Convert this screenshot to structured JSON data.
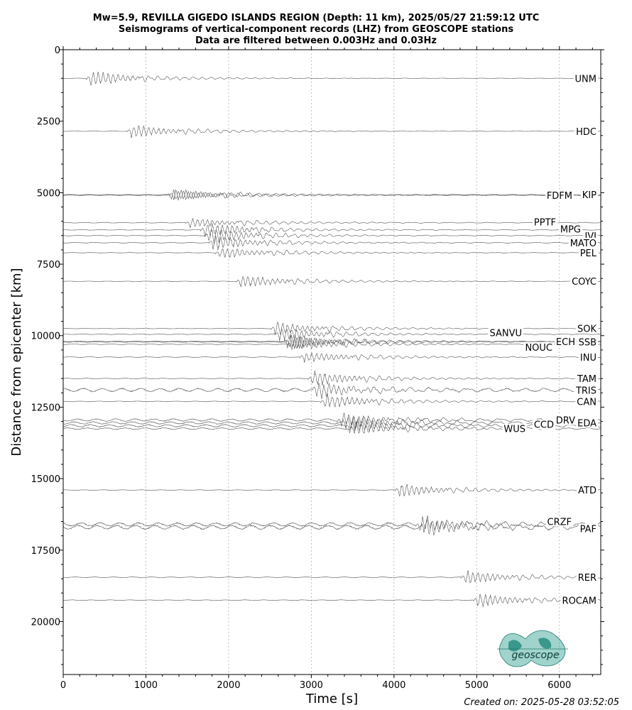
{
  "figure": {
    "title_lines": [
      "Mw=5.9, REVILLA GIGEDO ISLANDS REGION (Depth: 11 km), 2025/05/27 21:59:12 UTC",
      "Seismograms of vertical-component records (LHZ) from GEOSCOPE stations",
      "Data are filtered between 0.003Hz and 0.03Hz"
    ],
    "created": "Created on: 2025-05-28 03:52:05",
    "logo_text": "geoscope"
  },
  "chart_data": {
    "type": "line",
    "xlabel": "Time [s]",
    "ylabel": "Distance from epicenter [km]",
    "xlim": [
      0,
      6500
    ],
    "ylim": [
      21850,
      0
    ],
    "y_inverted": true,
    "xticks": [
      0,
      1000,
      2000,
      3000,
      4000,
      5000,
      6000
    ],
    "yticks": [
      0,
      2500,
      5000,
      7500,
      10000,
      12500,
      15000,
      17500,
      20000
    ],
    "grid": "x-dotted",
    "colors": {
      "trace": "#555555",
      "grid": "#b0b0b0",
      "logo": "#2a9d8f"
    },
    "stations": [
      {
        "name": "UNM",
        "distance": 1000,
        "arrival": 320,
        "amp": 0.9,
        "noise": 0.03
      },
      {
        "name": "HDC",
        "distance": 2850,
        "arrival": 810,
        "amp": 0.8,
        "noise": 0.03
      },
      {
        "name": "FDFM",
        "distance": 5090,
        "arrival": 1290,
        "amp": 0.7,
        "noise": 0.04
      },
      {
        "name": "KIP",
        "distance": 5070,
        "arrival": 1320,
        "amp": 0.7,
        "noise": 0.04
      },
      {
        "name": "PPTF",
        "distance": 6050,
        "arrival": 1520,
        "amp": 0.6,
        "noise": 0.05
      },
      {
        "name": "MPG",
        "distance": 6300,
        "arrival": 1700,
        "amp": 0.9,
        "noise": 0.05
      },
      {
        "name": "IVI",
        "distance": 6500,
        "arrival": 1750,
        "amp": 1.0,
        "noise": 0.05
      },
      {
        "name": "MATO",
        "distance": 6750,
        "arrival": 1800,
        "amp": 0.9,
        "noise": 0.05
      },
      {
        "name": "PEL",
        "distance": 7100,
        "arrival": 1880,
        "amp": 0.7,
        "noise": 0.03
      },
      {
        "name": "COYC",
        "distance": 8100,
        "arrival": 2130,
        "amp": 0.8,
        "noise": 0.03
      },
      {
        "name": "SOK",
        "distance": 9750,
        "arrival": 2550,
        "amp": 0.8,
        "noise": 0.04
      },
      {
        "name": "SANVU",
        "distance": 9950,
        "arrival": 2600,
        "amp": 0.8,
        "noise": 0.05
      },
      {
        "name": "ECH",
        "distance": 10200,
        "arrival": 2700,
        "amp": 0.9,
        "noise": 0.05
      },
      {
        "name": "SSB",
        "distance": 10220,
        "arrival": 2720,
        "amp": 0.9,
        "noise": 0.05
      },
      {
        "name": "NOUC",
        "distance": 10300,
        "arrival": 2750,
        "amp": 0.8,
        "noise": 0.05
      },
      {
        "name": "INU",
        "distance": 10750,
        "arrival": 2900,
        "amp": 0.7,
        "noise": 0.05
      },
      {
        "name": "TAM",
        "distance": 11500,
        "arrival": 3000,
        "amp": 0.9,
        "noise": 0.05
      },
      {
        "name": "TRIS",
        "distance": 11900,
        "arrival": 3050,
        "amp": 0.9,
        "noise": 0.25
      },
      {
        "name": "CAN",
        "distance": 12300,
        "arrival": 3150,
        "amp": 0.9,
        "noise": 0.05
      },
      {
        "name": "DRV",
        "distance": 12950,
        "arrival": 3350,
        "amp": 0.8,
        "noise": 0.18
      },
      {
        "name": "EDA",
        "distance": 13050,
        "arrival": 3400,
        "amp": 0.9,
        "noise": 0.18
      },
      {
        "name": "CCD",
        "distance": 13150,
        "arrival": 3450,
        "amp": 0.8,
        "noise": 0.18
      },
      {
        "name": "WUS",
        "distance": 13250,
        "arrival": 3500,
        "amp": 0.8,
        "noise": 0.12
      },
      {
        "name": "ATD",
        "distance": 15400,
        "arrival": 4050,
        "amp": 0.8,
        "noise": 0.05
      },
      {
        "name": "CRZF",
        "distance": 16600,
        "arrival": 4300,
        "amp": 0.9,
        "noise": 0.25
      },
      {
        "name": "PAF",
        "distance": 16700,
        "arrival": 4350,
        "amp": 0.9,
        "noise": 0.3
      },
      {
        "name": "RER",
        "distance": 18450,
        "arrival": 4850,
        "amp": 0.8,
        "noise": 0.05
      },
      {
        "name": "ROCAM",
        "distance": 19250,
        "arrival": 5000,
        "amp": 0.8,
        "noise": 0.05
      }
    ]
  }
}
